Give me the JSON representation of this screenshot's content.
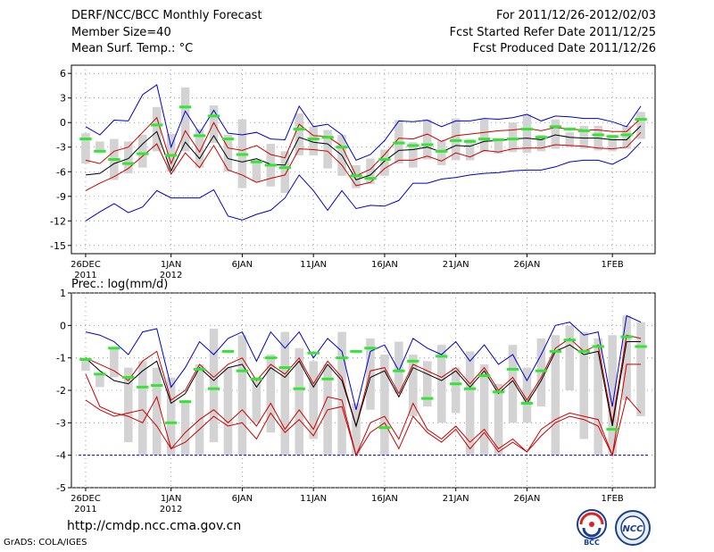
{
  "header": {
    "title": "DERF/NCC/BCC Monthly Forecast",
    "member_size": "Member Size=40",
    "variable": "Mean Surf. Temp.: °C",
    "period": "For 2011/12/26-2012/02/03",
    "fcst_started": "Fcst Started Refer Date 2011/12/25",
    "fcst_produced": "Fcst Produced Date 2011/12/26"
  },
  "footer": {
    "url": "http://cmdp.ncc.cma.gov.cn",
    "grads": "GrADS: COLA/IGES"
  },
  "logos": {
    "bcc": "BCC",
    "ncc": "NCC"
  },
  "colors": {
    "blue": "#0000cc",
    "red": "#cc0000",
    "black": "#000000",
    "box": "#d3d3d3",
    "green": "#33e633",
    "dotgrid": "#888888"
  },
  "chart_data": [
    {
      "type": "line",
      "title": "Mean Surf. Temp.: °C",
      "ylim": [
        -16,
        7
      ],
      "yticks": [
        6,
        3,
        0,
        -3,
        -6,
        -9,
        -12,
        -15
      ],
      "ytick_labels": [
        "6",
        "3",
        "0",
        "-3",
        "-6",
        "-9",
        "-12",
        "-15"
      ],
      "xticks": [
        {
          "day": 1,
          "label": "26DEC",
          "sub": "2011"
        },
        {
          "day": 7,
          "label": "1JAN",
          "sub": "2012"
        },
        {
          "day": 12,
          "label": "6JAN",
          "sub": ""
        },
        {
          "day": 17,
          "label": "11JAN",
          "sub": ""
        },
        {
          "day": 22,
          "label": "16JAN",
          "sub": ""
        },
        {
          "day": 27,
          "label": "21JAN",
          "sub": ""
        },
        {
          "day": 32,
          "label": "26JAN",
          "sub": ""
        },
        {
          "day": 38,
          "label": "1FEB",
          "sub": ""
        }
      ],
      "x": [
        1,
        2,
        3,
        4,
        5,
        6,
        7,
        8,
        9,
        10,
        11,
        12,
        13,
        14,
        15,
        16,
        17,
        18,
        19,
        20,
        21,
        22,
        23,
        24,
        25,
        26,
        27,
        28,
        29,
        30,
        31,
        32,
        33,
        34,
        35,
        36,
        37,
        38,
        39,
        40
      ],
      "series": [
        {
          "name": "max",
          "color": "blue",
          "values": [
            -0.5,
            -1.5,
            0.3,
            0.2,
            3.4,
            4.6,
            -3,
            1.4,
            -1.3,
            1.5,
            -1.3,
            -1.5,
            -1.2,
            -2,
            -2.1,
            2,
            -0.5,
            -0.2,
            -1.5,
            -4.6,
            -3.9,
            -2.2,
            0.2,
            0.1,
            0.3,
            -0.5,
            0.2,
            0.2,
            0.5,
            0.4,
            0.6,
            1,
            0.2,
            0.8,
            0.7,
            0.5,
            0.5,
            0.1,
            -0.5,
            2
          ]
        },
        {
          "name": "p90",
          "color": "red",
          "values": [
            -4.6,
            -5,
            -3.5,
            -3,
            -1.2,
            0.6,
            -5,
            -1,
            -3.6,
            0,
            -3.1,
            -3.4,
            -2.8,
            -3.9,
            -4.3,
            -0.2,
            -1.6,
            -1.7,
            -2.9,
            -6.5,
            -5.7,
            -3.9,
            -1.9,
            -2,
            -1.4,
            -2.3,
            -1.6,
            -1.4,
            -1.2,
            -1,
            -0.9,
            -0.7,
            -1,
            -0.6,
            -0.8,
            -0.9,
            -0.9,
            -1.1,
            -1.1,
            0.5
          ]
        },
        {
          "name": "mean",
          "color": "black",
          "values": [
            -6.4,
            -6.2,
            -5,
            -4.4,
            -2.6,
            -1.1,
            -5.9,
            -2.4,
            -4.4,
            -1.6,
            -4.4,
            -4.8,
            -4.4,
            -5.1,
            -5.2,
            -1.8,
            -2.4,
            -2.6,
            -4,
            -7,
            -6.4,
            -4.7,
            -3.4,
            -3.3,
            -3,
            -3.6,
            -2.8,
            -2.9,
            -2.3,
            -2.2,
            -2,
            -1.9,
            -2.1,
            -1.5,
            -1.8,
            -1.9,
            -1.9,
            -2.1,
            -2.1,
            -0.4
          ]
        },
        {
          "name": "p10",
          "color": "red",
          "values": [
            -8.3,
            -7.4,
            -6.6,
            -5.6,
            -4.1,
            -2.6,
            -6.3,
            -3.7,
            -5.5,
            -2.8,
            -5.8,
            -6.4,
            -7.3,
            -6.8,
            -6.4,
            -3.2,
            -3.3,
            -3.5,
            -5.2,
            -7.7,
            -7.3,
            -5.6,
            -4.6,
            -4.6,
            -4.1,
            -4.7,
            -3.7,
            -4.2,
            -3.4,
            -3.6,
            -3.2,
            -3.1,
            -3.1,
            -2.7,
            -2.8,
            -2.9,
            -3.1,
            -3.2,
            -3,
            -1.2
          ]
        },
        {
          "name": "min",
          "color": "blue",
          "values": [
            -12,
            -10.9,
            -9.9,
            -11,
            -10.3,
            -8.3,
            -9.2,
            -9.2,
            -9.2,
            -8.2,
            -11.4,
            -11.9,
            -11.2,
            -10.7,
            -9.2,
            -6.4,
            -8.3,
            -10.7,
            -8.3,
            -10.5,
            -10.1,
            -10.2,
            -9.5,
            -7.4,
            -7.4,
            -6.9,
            -6.7,
            -6.4,
            -6.2,
            -6.1,
            -5.9,
            -5.8,
            -5.8,
            -5.4,
            -4.8,
            -4.6,
            -4.6,
            -5.1,
            -4.2,
            -2.4
          ]
        }
      ],
      "boxes": {
        "low": [
          -5,
          -3.4,
          -7,
          -6.2,
          -5.5,
          -3.5,
          -6,
          -3.5,
          -5.5,
          -2.5,
          -6,
          -8,
          -7.2,
          -7.8,
          -8.6,
          -4,
          -4,
          -5.6,
          -6.5,
          -8,
          -7.5,
          -6.5,
          -5,
          -5.5,
          -4.5,
          -5.2,
          -4.6,
          -4.6,
          -3.6,
          -3.8,
          -3.6,
          -3.7,
          -3.5,
          -3.2,
          -3,
          -3.2,
          -3.4,
          -3.5,
          -3.2,
          -2
        ],
        "high": [
          -1.3,
          -2.3,
          -2,
          -2.3,
          -1.5,
          1.9,
          -1.4,
          4.3,
          -0.8,
          2.1,
          -1.5,
          0.4,
          -4.5,
          -2.6,
          -3.5,
          1.1,
          -0.5,
          -0.9,
          -1.5,
          -5.2,
          -4.4,
          -3.3,
          0.3,
          -2.4,
          0.4,
          -2.2,
          0.5,
          -2,
          0.4,
          -2.1,
          0,
          1,
          -1.5,
          0.4,
          -1.2,
          -0.4,
          -0.4,
          -1.5,
          -0.4,
          1.3
        ]
      },
      "green_marks": [
        -2,
        -3.5,
        -4.5,
        -5,
        -3.8,
        -0.3,
        -4,
        1.9,
        -1.6,
        0.8,
        -2,
        -3.9,
        -4.8,
        -5.2,
        -5.5,
        -0.8,
        -2,
        -1.8,
        -3,
        -6.5,
        -6.8,
        -4.5,
        -2.5,
        -2.8,
        -2.7,
        -3.5,
        -2.2,
        -2.3,
        -2,
        -2.1,
        -2,
        -0.8,
        -1.8,
        -0.5,
        -0.8,
        -1,
        -1.5,
        -1.7,
        -1.5,
        0.4
      ]
    },
    {
      "type": "line",
      "title": "Prec.: log(mm/d)",
      "ylim": [
        -5,
        1
      ],
      "yticks": [
        1,
        0,
        -1,
        -2,
        -3,
        -4,
        -5
      ],
      "ytick_labels": [
        "1",
        "0",
        "-1",
        "-2",
        "-3",
        "-4",
        "-5"
      ],
      "xticks": [
        {
          "day": 1,
          "label": "26DEC",
          "sub": "2011"
        },
        {
          "day": 7,
          "label": "1JAN",
          "sub": "2012"
        },
        {
          "day": 12,
          "label": "6JAN",
          "sub": ""
        },
        {
          "day": 17,
          "label": "11JAN",
          "sub": ""
        },
        {
          "day": 22,
          "label": "16JAN",
          "sub": ""
        },
        {
          "day": 27,
          "label": "21JAN",
          "sub": ""
        },
        {
          "day": 32,
          "label": "26JAN",
          "sub": ""
        },
        {
          "day": 38,
          "label": "1FEB",
          "sub": ""
        }
      ],
      "x": [
        1,
        2,
        3,
        4,
        5,
        6,
        7,
        8,
        9,
        10,
        11,
        12,
        13,
        14,
        15,
        16,
        17,
        18,
        19,
        20,
        21,
        22,
        23,
        24,
        25,
        26,
        27,
        28,
        29,
        30,
        31,
        32,
        33,
        34,
        35,
        36,
        37,
        38,
        39,
        40
      ],
      "baseline": -4,
      "series": [
        {
          "name": "max",
          "color": "blue",
          "values": [
            -0.2,
            -0.3,
            -0.5,
            -0.9,
            -0.2,
            -0.1,
            -1.9,
            -1.3,
            -0.5,
            -0.9,
            -0.4,
            -0.2,
            -1.1,
            -0.2,
            -0.7,
            -0.2,
            -1,
            -0.4,
            -0.8,
            -2.6,
            -0.8,
            -0.6,
            -1.4,
            -0.4,
            -0.7,
            -0.9,
            -0.5,
            -1.1,
            -0.6,
            -1.2,
            -0.9,
            -1.7,
            -0.9,
            0,
            0.1,
            -0.3,
            -0.2,
            -2.5,
            0.3,
            0.1
          ]
        },
        {
          "name": "p90",
          "color": "red",
          "values": [
            -1,
            -1.2,
            -1.4,
            -1.7,
            -1.1,
            -0.8,
            -2.3,
            -2,
            -1.2,
            -1.6,
            -1.2,
            -1,
            -1.7,
            -1.2,
            -1.5,
            -1,
            -1.8,
            -1.1,
            -1.6,
            -3.1,
            -1.4,
            -1.3,
            -2.1,
            -1.2,
            -1.4,
            -1.6,
            -1.3,
            -1.8,
            -1.3,
            -2,
            -1.6,
            -2.3,
            -1.6,
            -0.7,
            -0.4,
            -0.8,
            -0.6,
            -3,
            -0.3,
            -0.4
          ]
        },
        {
          "name": "mean",
          "color": "black",
          "values": [
            -1,
            -1.4,
            -1.7,
            -1.8,
            -1.4,
            -1.1,
            -2.4,
            -2.1,
            -1.3,
            -1.7,
            -1.3,
            -1.2,
            -1.9,
            -1.3,
            -1.6,
            -1.1,
            -1.9,
            -1.2,
            -1.7,
            -3.1,
            -1.6,
            -1.4,
            -2.2,
            -1.3,
            -1.5,
            -1.7,
            -1.4,
            -1.9,
            -1.4,
            -2.1,
            -1.7,
            -2.4,
            -1.7,
            -0.8,
            -0.6,
            -0.9,
            -0.8,
            -3.1,
            -0.5,
            -0.5
          ]
        },
        {
          "name": "p10",
          "color": "red",
          "values": [
            -1.5,
            -2.5,
            -2.7,
            -2.8,
            -3,
            -2.2,
            -3.8,
            -3.3,
            -2.9,
            -2.6,
            -3,
            -2.6,
            -3.1,
            -2.4,
            -3.2,
            -2.6,
            -3.2,
            -2.2,
            -2.3,
            -4,
            -3,
            -2.8,
            -3.5,
            -2.4,
            -3.2,
            -3.5,
            -3.1,
            -3.6,
            -3.2,
            -3.8,
            -3.5,
            -3.9,
            -3.2,
            -2.9,
            -2.7,
            -2.8,
            -2.9,
            -4,
            -1.2,
            -1.2
          ]
        },
        {
          "name": "min",
          "color": "red",
          "values": [
            -2.3,
            -2.6,
            -2.8,
            -2.7,
            -2.6,
            -3.1,
            -3.8,
            -3.6,
            -3.2,
            -2.8,
            -3.1,
            -3,
            -3.5,
            -2.7,
            -3.3,
            -2.9,
            -3.4,
            -2.6,
            -2.5,
            -4,
            -3.3,
            -3,
            -3.8,
            -2.8,
            -3.3,
            -3.6,
            -3.2,
            -3.8,
            -3.3,
            -3.9,
            -3.6,
            -3.9,
            -3.4,
            -3,
            -2.8,
            -2.9,
            -3.1,
            -4,
            -2.2,
            -2.7
          ]
        }
      ],
      "boxes": {
        "low": [
          -1.4,
          -1.9,
          -1.6,
          -3.6,
          -4,
          -4,
          -4,
          -4,
          -4,
          -3.6,
          -4,
          -4,
          -3,
          -3.3,
          -4,
          -4,
          -3.5,
          -4,
          -4,
          -4,
          -2.6,
          -4,
          -2.1,
          -2.8,
          -2.5,
          -3,
          -2.7,
          -4,
          -4,
          -4,
          -3,
          -3,
          -2.5,
          -4,
          -2,
          -3.5,
          -4,
          -4,
          -2.3,
          -2.8
        ],
        "high": [
          -1,
          -1.5,
          -0.7,
          -1.3,
          -1.1,
          -1.3,
          -1.6,
          -2.3,
          -1.2,
          -0.1,
          -1.3,
          -0.3,
          -1.6,
          -0.9,
          -0.2,
          -0.7,
          -1.1,
          -1.2,
          -0.2,
          -2.4,
          -0.4,
          -0.9,
          -0.5,
          -0.9,
          -1.1,
          -0.6,
          -1.3,
          -0.8,
          -1.2,
          -1.8,
          -0.6,
          -1.3,
          -0.4,
          -0.3,
          0,
          -0.2,
          -0.4,
          -0.3,
          0.3,
          0.1
        ]
      },
      "green_marks": [
        -1.05,
        -1.5,
        -0.7,
        -1.6,
        -1.9,
        -1.85,
        -3,
        -2.35,
        -1.35,
        -1.95,
        -0.8,
        -1.4,
        -1.65,
        -1,
        -1.3,
        -1.95,
        -0.85,
        -1.65,
        -1,
        -0.8,
        -0.7,
        -3.15,
        -1.4,
        -1.1,
        -2.25,
        -0.95,
        -1.8,
        -1.95,
        -1.55,
        -2.05,
        -1.35,
        -2.4,
        -1.4,
        -0.8,
        -0.45,
        -0.8,
        -0.65,
        -3.2,
        -0.35,
        -0.65
      ]
    }
  ]
}
